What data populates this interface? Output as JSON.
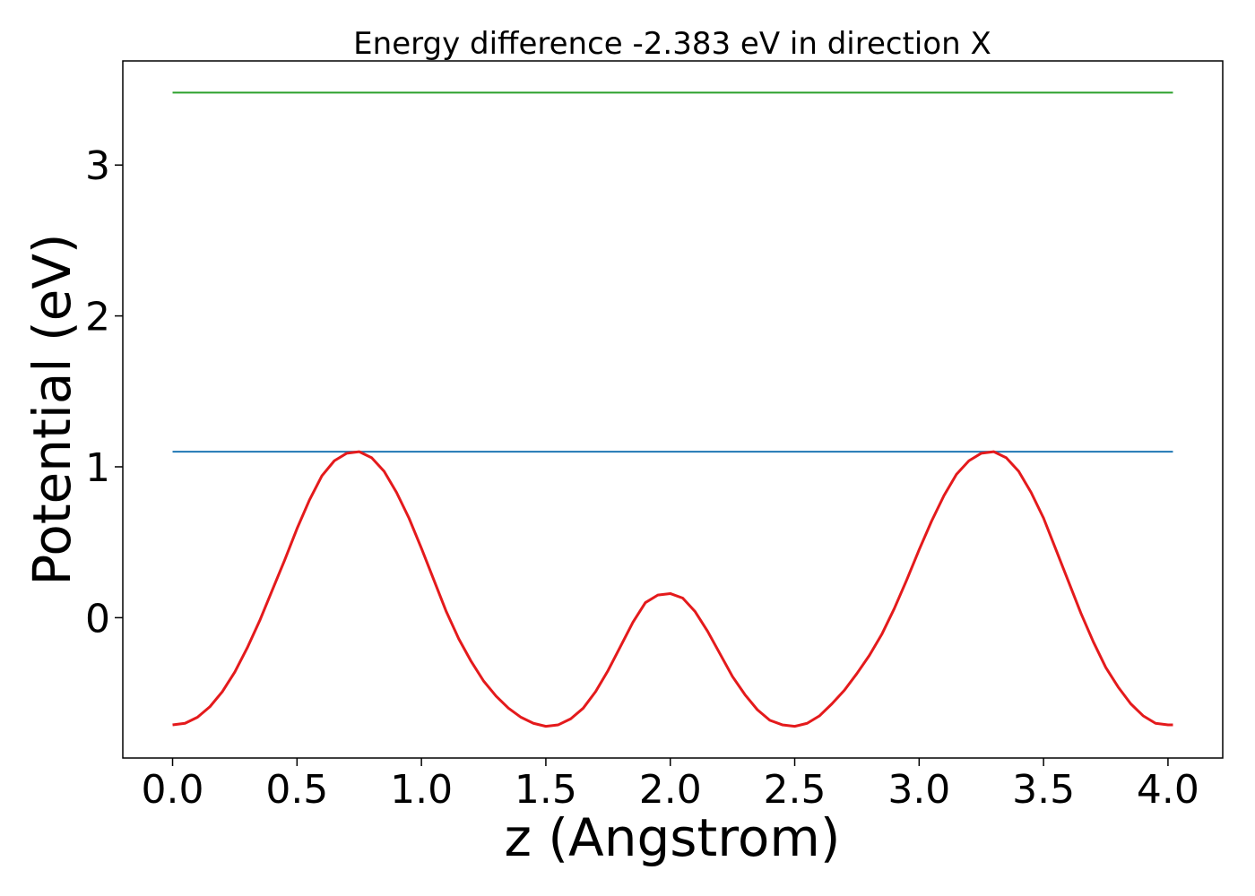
{
  "chart_data": {
    "type": "line",
    "title": "Energy difference -2.383 eV in direction X",
    "xlabel": "z (Angstrom)",
    "ylabel": "Potential (eV)",
    "xlim": [
      -0.2,
      4.22
    ],
    "ylim": [
      -0.93,
      3.69
    ],
    "xticks": [
      0.0,
      0.5,
      1.0,
      1.5,
      2.0,
      2.5,
      3.0,
      3.5,
      4.0
    ],
    "xtick_labels": [
      "0.0",
      "0.5",
      "1.0",
      "1.5",
      "2.0",
      "2.5",
      "3.0",
      "3.5",
      "4.0"
    ],
    "yticks": [
      0,
      1,
      2,
      3
    ],
    "ytick_labels": [
      "0",
      "1",
      "2",
      "3"
    ],
    "grid": false,
    "legend": false,
    "series": [
      {
        "color": "#2ca02c",
        "x": [
          0.0,
          4.02
        ],
        "y": [
          3.48,
          3.48
        ]
      },
      {
        "color": "#1f77b4",
        "x": [
          0.0,
          4.02
        ],
        "y": [
          1.1,
          1.1
        ]
      },
      {
        "color": "#e41a1c",
        "x": [
          0.0,
          0.05,
          0.1,
          0.15,
          0.2,
          0.25,
          0.3,
          0.35,
          0.4,
          0.45,
          0.5,
          0.55,
          0.6,
          0.65,
          0.7,
          0.75,
          0.8,
          0.85,
          0.9,
          0.95,
          1.0,
          1.05,
          1.1,
          1.15,
          1.2,
          1.25,
          1.3,
          1.35,
          1.4,
          1.45,
          1.5,
          1.55,
          1.6,
          1.65,
          1.7,
          1.75,
          1.8,
          1.85,
          1.9,
          1.95,
          2.0,
          2.05,
          2.1,
          2.15,
          2.2,
          2.25,
          2.3,
          2.35,
          2.4,
          2.45,
          2.5,
          2.55,
          2.6,
          2.65,
          2.7,
          2.75,
          2.8,
          2.85,
          2.9,
          2.95,
          3.0,
          3.05,
          3.1,
          3.15,
          3.2,
          3.25,
          3.3,
          3.35,
          3.4,
          3.45,
          3.5,
          3.55,
          3.6,
          3.65,
          3.7,
          3.75,
          3.8,
          3.85,
          3.9,
          3.95,
          4.0,
          4.02
        ],
        "y": [
          -0.71,
          -0.7,
          -0.66,
          -0.59,
          -0.49,
          -0.36,
          -0.2,
          -0.02,
          0.18,
          0.38,
          0.59,
          0.78,
          0.94,
          1.04,
          1.09,
          1.1,
          1.06,
          0.97,
          0.83,
          0.66,
          0.46,
          0.25,
          0.04,
          -0.14,
          -0.29,
          -0.42,
          -0.52,
          -0.6,
          -0.66,
          -0.7,
          -0.72,
          -0.71,
          -0.67,
          -0.6,
          -0.49,
          -0.35,
          -0.19,
          -0.03,
          0.1,
          0.15,
          0.16,
          0.13,
          0.04,
          -0.09,
          -0.24,
          -0.39,
          -0.51,
          -0.61,
          -0.68,
          -0.71,
          -0.72,
          -0.7,
          -0.65,
          -0.57,
          -0.48,
          -0.37,
          -0.25,
          -0.11,
          0.06,
          0.25,
          0.45,
          0.64,
          0.81,
          0.95,
          1.04,
          1.09,
          1.1,
          1.06,
          0.97,
          0.83,
          0.66,
          0.45,
          0.24,
          0.03,
          -0.16,
          -0.33,
          -0.46,
          -0.57,
          -0.65,
          -0.7,
          -0.71,
          -0.71
        ]
      }
    ]
  }
}
